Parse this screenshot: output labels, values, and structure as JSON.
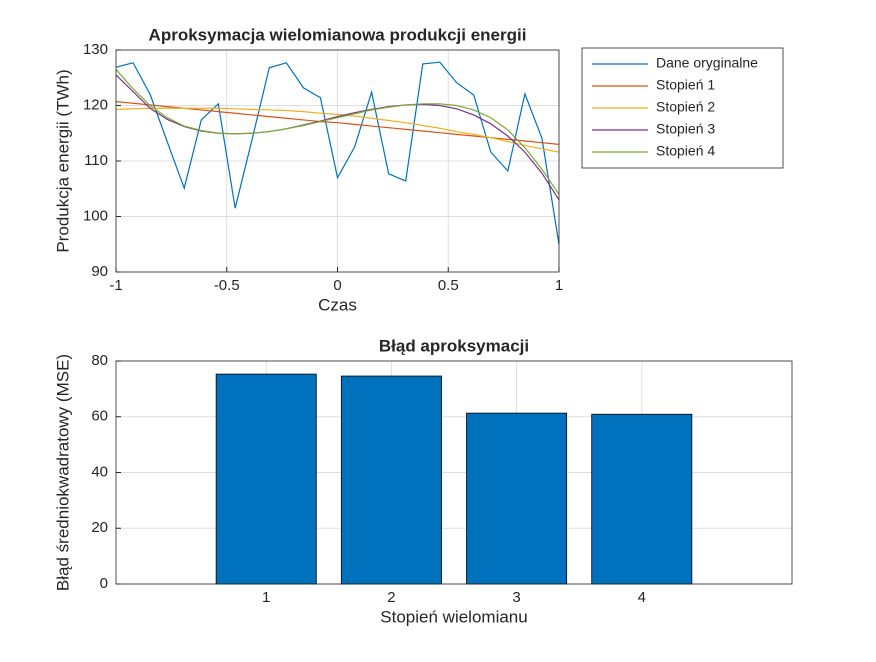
{
  "chart_data": [
    {
      "type": "line",
      "title": "Aproksymacja wielomianowa produkcji energii",
      "xlabel": "Czas",
      "ylabel": "Produkcja energii (TWh)",
      "x": [
        -1,
        -0.923,
        -0.846,
        -0.769,
        -0.692,
        -0.615,
        -0.538,
        -0.462,
        -0.385,
        -0.308,
        -0.231,
        -0.154,
        -0.077,
        0,
        0.077,
        0.154,
        0.231,
        0.308,
        0.385,
        0.462,
        0.538,
        0.615,
        0.692,
        0.769,
        0.846,
        0.923,
        1
      ],
      "series": [
        {
          "name": "Dane oryginalne",
          "color": "#0072BD",
          "values": [
            126.9,
            127.7,
            122,
            113.5,
            105.1,
            117.4,
            120.3,
            101.5,
            114,
            126.8,
            127.7,
            123.2,
            121.4,
            107,
            112.5,
            122.4,
            107.7,
            106.4,
            127.5,
            127.8,
            124.1,
            121.9,
            111.6,
            108.2,
            122.1,
            114.1,
            95
          ]
        },
        {
          "name": "Stopień 1",
          "color": "#D95319",
          "values": [
            120.7,
            120.4,
            120.1,
            119.8,
            119.5,
            119.2,
            118.9,
            118.6,
            118.3,
            118,
            117.7,
            117.4,
            117.1,
            116.9,
            116.6,
            116.3,
            116,
            115.7,
            115.4,
            115.1,
            114.8,
            114.5,
            114.2,
            113.9,
            113.6,
            113.3,
            113
          ]
        },
        {
          "name": "Stopień 2",
          "color": "#EDB120",
          "values": [
            119.3,
            119.4,
            119.5,
            119.5,
            119.5,
            119.5,
            119.5,
            119.4,
            119.3,
            119.2,
            119.1,
            118.9,
            118.6,
            118.4,
            118.1,
            117.7,
            117.3,
            116.9,
            116.4,
            115.9,
            115.3,
            114.8,
            114.2,
            113.5,
            112.8,
            112.2,
            111.6
          ]
        },
        {
          "name": "Stopień 3",
          "color": "#7E2F8E",
          "values": [
            125.5,
            122.5,
            119.5,
            117.5,
            116.2,
            115.4,
            115,
            114.9,
            115,
            115.3,
            115.8,
            116.5,
            117.2,
            118,
            118.7,
            119.3,
            119.8,
            120.1,
            120.2,
            120,
            119.4,
            118.3,
            116.7,
            114.5,
            111.6,
            107.8,
            103
          ]
        },
        {
          "name": "Stopień 4",
          "color": "#77AC30",
          "values": [
            126.5,
            123,
            120,
            117.8,
            116.3,
            115.5,
            115,
            114.9,
            115,
            115.3,
            115.8,
            116.4,
            117.1,
            117.8,
            118.5,
            119.2,
            119.7,
            120.1,
            120.3,
            120.3,
            120,
            119.2,
            117.8,
            115.6,
            112.4,
            108.5,
            104
          ]
        }
      ],
      "xlim": [
        -1,
        1
      ],
      "xticks": [
        -1,
        -0.5,
        0,
        0.5,
        1
      ],
      "ylim": [
        90,
        130
      ],
      "yticks": [
        90,
        100,
        110,
        120,
        130
      ],
      "grid": true,
      "legend": "outside-right"
    },
    {
      "type": "bar",
      "title": "Błąd aproksymacji",
      "xlabel": "Stopień wielomianu",
      "ylabel": "Błąd średniokwadratowy (MSE)",
      "x": [
        1,
        2,
        3,
        4
      ],
      "values": [
        75.3,
        74.6,
        61.3,
        60.9
      ],
      "color": "#0072BD",
      "xlim": [
        -0.2,
        5.2
      ],
      "xticks": [
        1,
        2,
        3,
        4
      ],
      "ylim": [
        0,
        80
      ],
      "yticks": [
        0,
        20,
        40,
        60,
        80
      ],
      "grid": true
    }
  ]
}
